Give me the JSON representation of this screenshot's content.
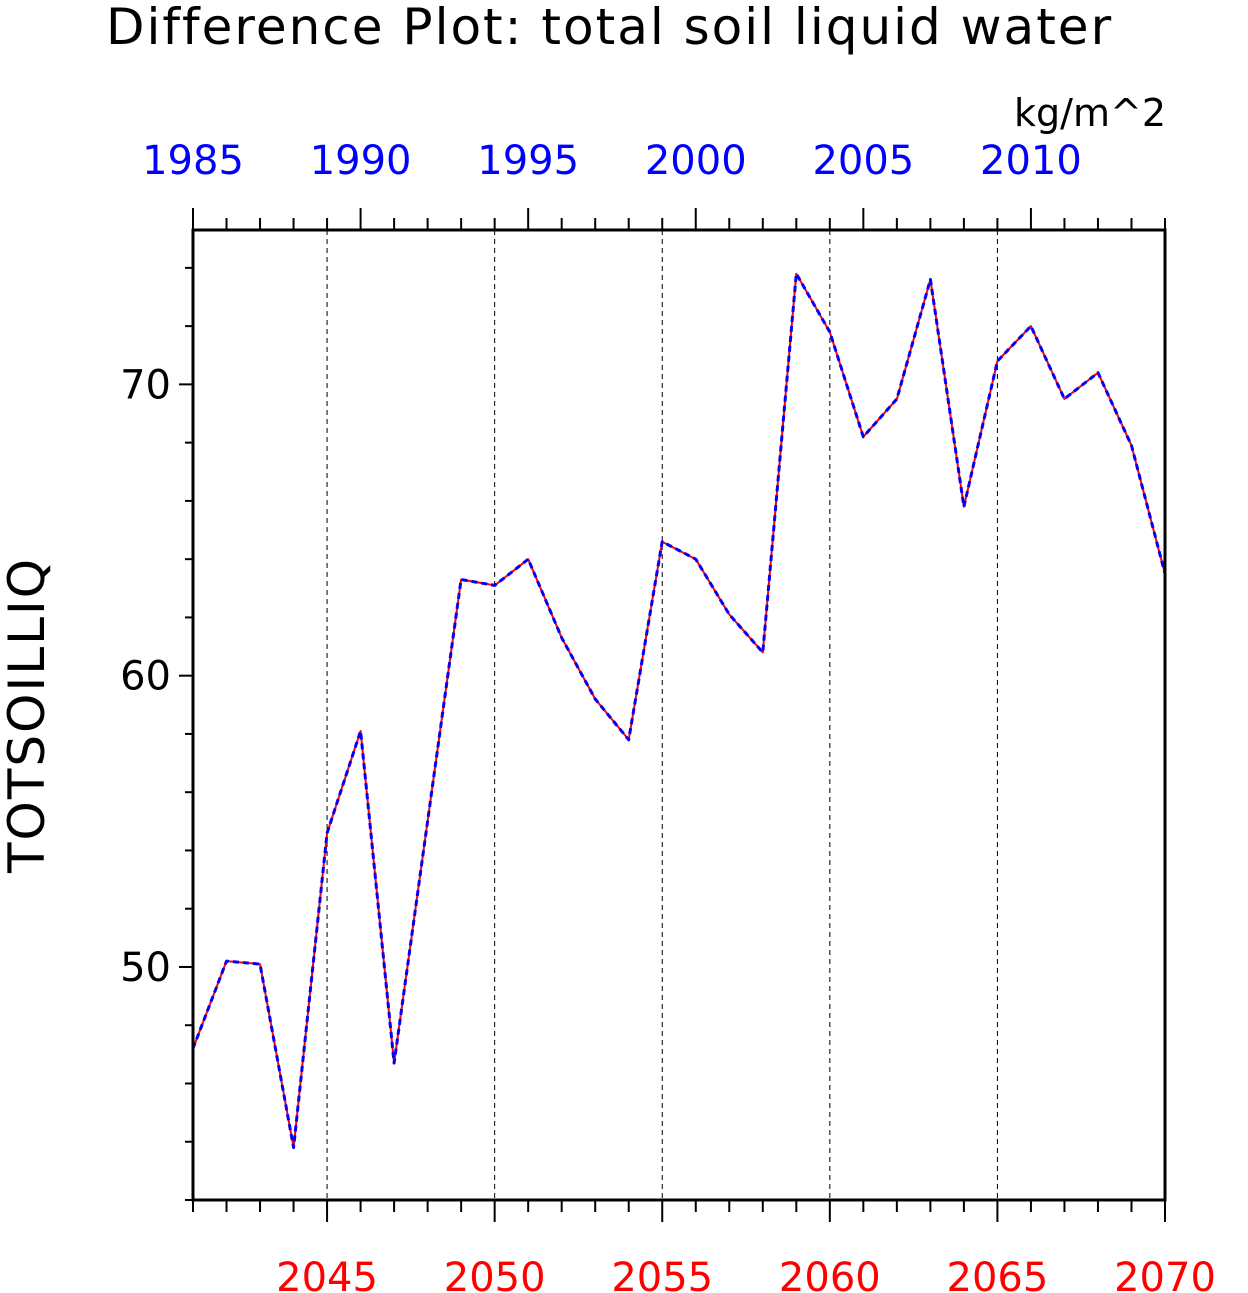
{
  "chart_data": {
    "type": "line",
    "title": "Difference Plot: total soil liquid water",
    "units": "kg/m^2",
    "ylabel": "TOTSOILLIQ",
    "ylim": [
      42,
      75.3
    ],
    "y_major_ticks": [
      50,
      60,
      70
    ],
    "y_minor_step": 2,
    "grid": "vertical dashed lines at labeled x ticks",
    "bottom_axis": {
      "color": "#ff0000",
      "range": [
        2041,
        2070
      ],
      "labels": [
        2045,
        2050,
        2055,
        2060,
        2065,
        2070
      ],
      "minor_step": 1
    },
    "top_axis": {
      "color": "#0000ff",
      "range": [
        1985,
        2014
      ],
      "labels": [
        1985,
        1990,
        1995,
        2000,
        2005,
        2010
      ],
      "minor_step": 1
    },
    "series": [
      {
        "color": "#ff0000",
        "style": "solid",
        "x_axis": "bottom",
        "x": [
          2041,
          2042,
          2043,
          2044,
          2045,
          2046,
          2047,
          2048,
          2049,
          2050,
          2051,
          2052,
          2053,
          2054,
          2055,
          2056,
          2057,
          2058,
          2059,
          2060,
          2061,
          2062,
          2063,
          2064,
          2065,
          2066,
          2067,
          2068,
          2069,
          2070
        ],
        "values": [
          47.2,
          50.2,
          50.1,
          43.8,
          54.6,
          58.1,
          46.7,
          55.0,
          63.3,
          63.1,
          64.0,
          61.3,
          59.2,
          57.8,
          64.6,
          64.0,
          62.1,
          60.8,
          73.8,
          71.8,
          68.2,
          69.5,
          73.6,
          65.8,
          70.8,
          72.0,
          69.5,
          70.4,
          67.9,
          63.5
        ]
      },
      {
        "color": "#0000ff",
        "style": "dashed",
        "x_axis": "top",
        "x": [
          1985,
          1986,
          1987,
          1988,
          1989,
          1990,
          1991,
          1992,
          1993,
          1994,
          1995,
          1996,
          1997,
          1998,
          1999,
          2000,
          2001,
          2002,
          2003,
          2004,
          2005,
          2006,
          2007,
          2008,
          2009,
          2010,
          2011,
          2012,
          2013,
          2014
        ],
        "values": [
          47.2,
          50.2,
          50.1,
          43.8,
          54.6,
          58.1,
          46.7,
          55.0,
          63.3,
          63.1,
          64.0,
          61.3,
          59.2,
          57.8,
          64.6,
          64.0,
          62.1,
          60.8,
          73.8,
          71.8,
          68.2,
          69.5,
          73.6,
          65.8,
          70.8,
          72.0,
          69.5,
          70.4,
          67.9,
          63.5
        ]
      }
    ]
  }
}
